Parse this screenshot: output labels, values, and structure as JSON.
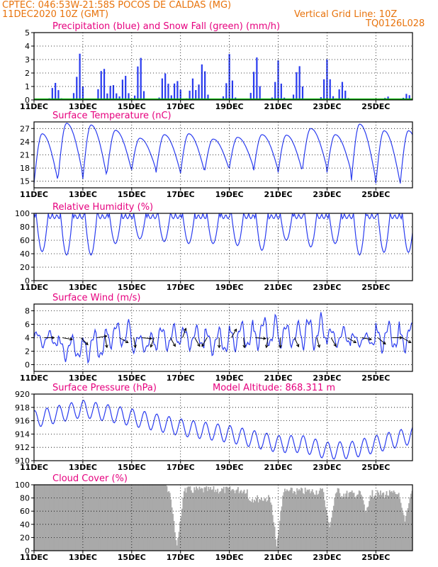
{
  "header": {
    "line1": "CPTEC:   046:53W-21:58S   POCOS DE CALDAS (MG)",
    "line2": "11DEC2020 10Z (GMT)",
    "grid_note": "Vertical Grid Line: 10Z",
    "run_code": "TQ0126L028"
  },
  "colors": {
    "header": "#e8730c",
    "title": "#e6007e",
    "series": "#2a3cf0",
    "snow": "#00b000",
    "cloud": "#a9a9a9",
    "wind_arrow": "#000000"
  },
  "chart_data": [
    {
      "type": "bar",
      "title": "Precipitation (blue) and Snow Fall (green) (mm/h)",
      "x_tick_labels": [
        "11DEC",
        "13DEC",
        "15DEC",
        "17DEC",
        "19DEC",
        "21DEC",
        "23DEC",
        "25DEC"
      ],
      "x_tick_hours": [
        0,
        48,
        96,
        144,
        192,
        240,
        288,
        336
      ],
      "x_range_hours": [
        0,
        372
      ],
      "ylim": [
        0,
        5
      ],
      "yticks": [
        0,
        1,
        2,
        3,
        4,
        5
      ],
      "series": [
        {
          "name": "Precipitation",
          "color": "#2a3cf0",
          "bursts": [
            {
              "hour": 21,
              "peak": 2.1
            },
            {
              "hour": 44,
              "peak": 3.9
            },
            {
              "hour": 67,
              "peak": 3.4
            },
            {
              "hour": 77,
              "peak": 1.8
            },
            {
              "hour": 89,
              "peak": 2.5
            },
            {
              "hour": 104,
              "peak": 3.4
            },
            {
              "hour": 129,
              "peak": 3.1
            },
            {
              "hour": 140,
              "peak": 2.4
            },
            {
              "hour": 156,
              "peak": 2.0
            },
            {
              "hour": 166,
              "peak": 4.0
            },
            {
              "hour": 192,
              "peak": 3.6
            },
            {
              "hour": 218,
              "peak": 3.8
            },
            {
              "hour": 240,
              "peak": 3.9
            },
            {
              "hour": 260,
              "peak": 3.2
            },
            {
              "hour": 288,
              "peak": 3.9
            },
            {
              "hour": 303,
              "peak": 2.0
            },
            {
              "hour": 347,
              "peak": 0.3
            },
            {
              "hour": 367,
              "peak": 0.5
            }
          ]
        },
        {
          "name": "Snow Fall",
          "color": "#00b000",
          "values": [
            0
          ]
        }
      ]
    },
    {
      "type": "line",
      "title": "Surface Temperature (nC)",
      "ylim": [
        13.5,
        28.5
      ],
      "yticks": [
        15,
        18,
        21,
        24,
        27
      ],
      "daily_max": [
        25.8,
        28.2,
        27.8,
        26.6,
        24.8,
        25.6,
        25.8,
        24.6,
        25.0,
        25.6,
        25.5,
        27.0,
        25.6,
        28.0,
        26.5
      ],
      "daily_min": [
        14.5,
        16.5,
        15.5,
        17.4,
        17.6,
        17.0,
        16.8,
        17.6,
        18.0,
        17.5,
        17.0,
        18.0,
        17.0,
        15.2,
        14.5
      ],
      "series": [
        {
          "name": "",
          "color": "#2a3cf0"
        }
      ]
    },
    {
      "type": "line",
      "title": "Relative Humidity (%)",
      "ylim": [
        0,
        100
      ],
      "yticks": [
        0,
        20,
        40,
        60,
        80,
        100
      ],
      "daily_min": [
        43,
        38,
        38,
        55,
        62,
        58,
        55,
        55,
        52,
        45,
        60,
        50,
        55,
        38,
        42
      ],
      "series": [
        {
          "name": "",
          "color": "#2a3cf0"
        }
      ]
    },
    {
      "type": "line",
      "title": "Surface Wind (m/s)",
      "ylim": [
        -1,
        9
      ],
      "yticks": [
        0,
        2,
        4,
        6,
        8
      ],
      "daily_max": [
        5.2,
        4.6,
        5.6,
        6.8,
        4.8,
        6.2,
        6.0,
        5.8,
        6.8,
        7.6,
        6.6,
        7.8,
        5.8,
        4.8,
        6.8
      ],
      "daily_min": [
        2.4,
        0.4,
        0.2,
        2.2,
        1.6,
        1.8,
        2.0,
        1.2,
        1.8,
        2.0,
        2.2,
        1.8,
        2.4,
        2.6,
        1.6
      ],
      "series": [
        {
          "name": "",
          "color": "#2a3cf0"
        }
      ],
      "wind_arrows": [
        {
          "hour": 10,
          "dir": 90
        },
        {
          "hour": 28,
          "dir": 100
        },
        {
          "hour": 46,
          "dir": 135
        },
        {
          "hour": 62,
          "dir": 80
        },
        {
          "hour": 70,
          "dir": 170
        },
        {
          "hour": 84,
          "dir": 120
        },
        {
          "hour": 98,
          "dir": 170
        },
        {
          "hour": 106,
          "dir": 95
        },
        {
          "hour": 118,
          "dir": 200
        },
        {
          "hour": 134,
          "dir": 150
        },
        {
          "hour": 146,
          "dir": 20
        },
        {
          "hour": 158,
          "dir": 150
        },
        {
          "hour": 170,
          "dir": 210
        },
        {
          "hour": 182,
          "dir": 180
        },
        {
          "hour": 194,
          "dir": 30
        },
        {
          "hour": 206,
          "dir": 175
        },
        {
          "hour": 218,
          "dir": 95
        },
        {
          "hour": 230,
          "dir": 190
        },
        {
          "hour": 242,
          "dir": 180
        },
        {
          "hour": 256,
          "dir": 155
        },
        {
          "hour": 278,
          "dir": 165
        },
        {
          "hour": 292,
          "dir": 150
        },
        {
          "hour": 308,
          "dir": 120
        },
        {
          "hour": 322,
          "dir": 100
        },
        {
          "hour": 338,
          "dir": 130
        },
        {
          "hour": 352,
          "dir": 90
        },
        {
          "hour": 362,
          "dir": 120
        }
      ]
    },
    {
      "type": "line",
      "title": "Surface Pressure (hPa)",
      "annotation": "Model Altitude: 868.311 m",
      "ylim": [
        910,
        920
      ],
      "yticks": [
        910,
        912,
        914,
        916,
        918,
        920
      ],
      "anchors": [
        {
          "hour": 0,
          "value": 916.2
        },
        {
          "hour": 48,
          "value": 917.8
        },
        {
          "hour": 96,
          "value": 916.5
        },
        {
          "hour": 144,
          "value": 915.0
        },
        {
          "hour": 192,
          "value": 914.0
        },
        {
          "hour": 240,
          "value": 912.5
        },
        {
          "hour": 264,
          "value": 912.5
        },
        {
          "hour": 288,
          "value": 911.5
        },
        {
          "hour": 312,
          "value": 911.6
        },
        {
          "hour": 336,
          "value": 912.5
        },
        {
          "hour": 372,
          "value": 913.8
        }
      ],
      "series": [
        {
          "name": "",
          "color": "#2a3cf0"
        }
      ]
    },
    {
      "type": "area",
      "title": "Cloud Cover (%)",
      "ylim": [
        0,
        100
      ],
      "yticks": [
        0,
        20,
        40,
        60,
        80,
        100
      ],
      "segments": [
        {
          "from": 0,
          "to": 130,
          "value": 100
        },
        {
          "from": 130,
          "to": 210,
          "value": 98
        },
        {
          "from": 210,
          "to": 240,
          "value": 85
        },
        {
          "from": 240,
          "to": 300,
          "value": 96
        },
        {
          "from": 300,
          "to": 372,
          "value": 92
        }
      ],
      "deep_dips": [
        {
          "hour": 140,
          "value": 0
        },
        {
          "hour": 238,
          "value": 5
        },
        {
          "hour": 290,
          "value": 30
        },
        {
          "hour": 326,
          "value": 55
        },
        {
          "hour": 364,
          "value": 40
        }
      ],
      "series": [
        {
          "name": "",
          "color": "#a9a9a9"
        }
      ]
    }
  ]
}
